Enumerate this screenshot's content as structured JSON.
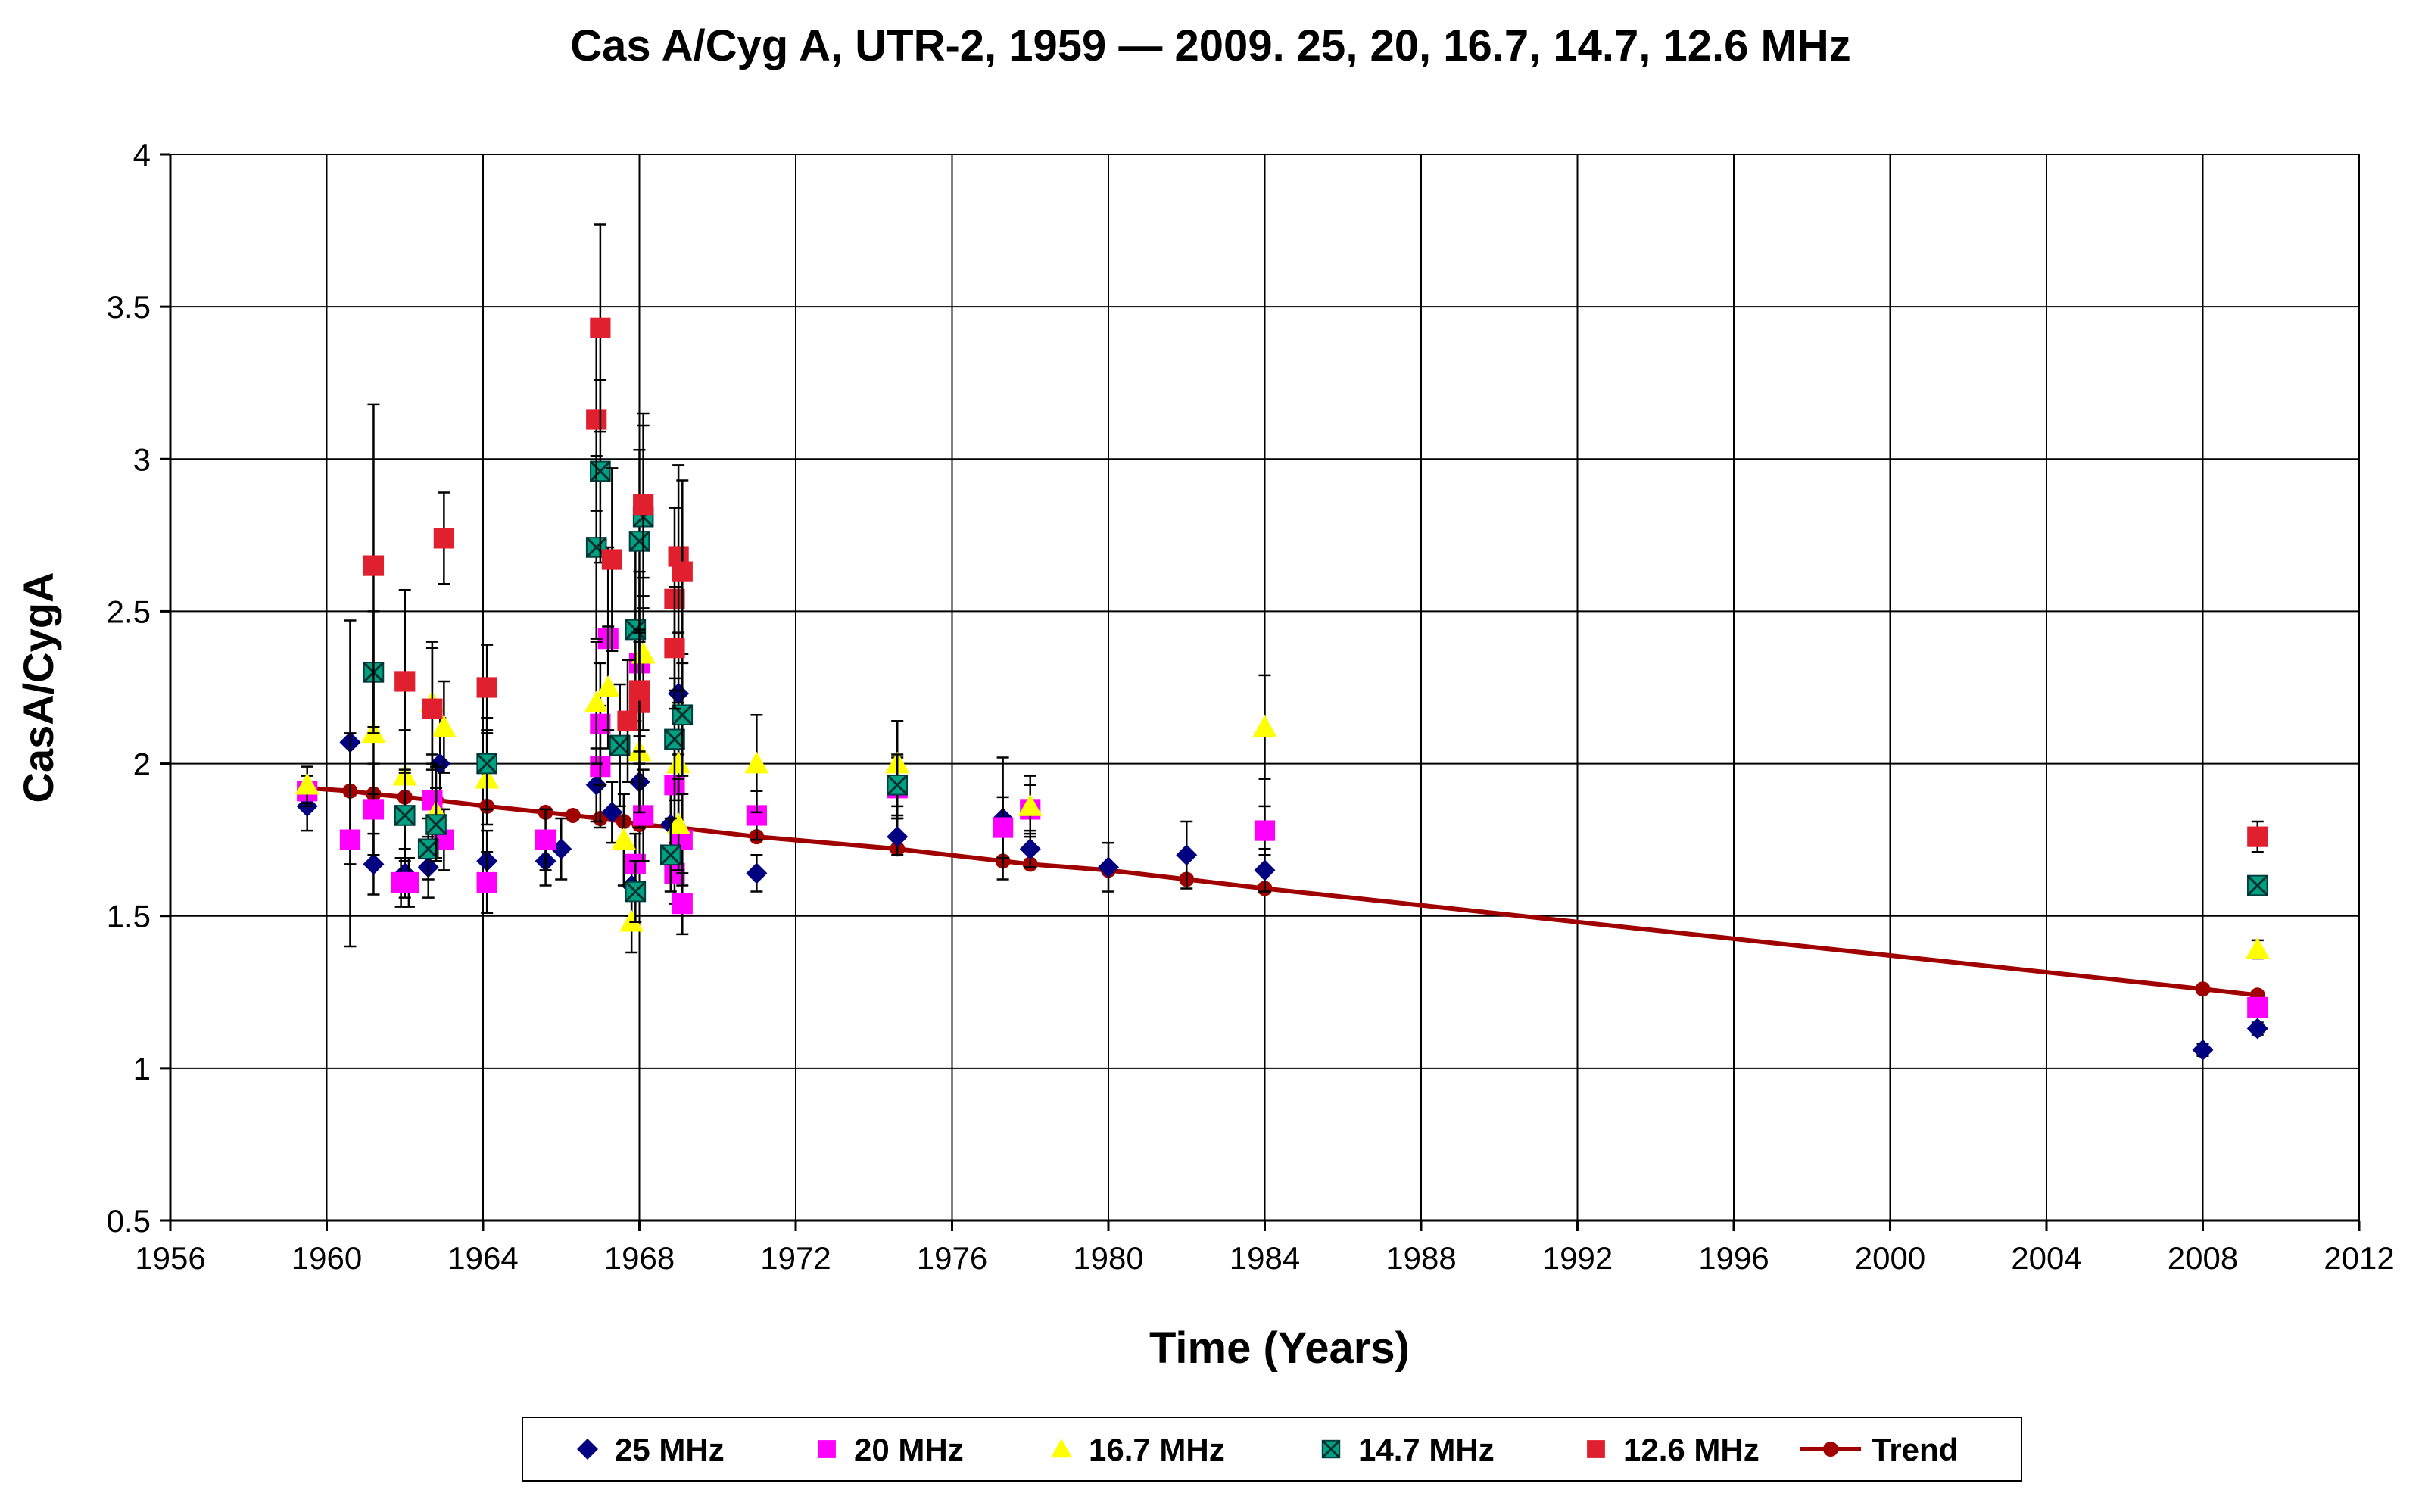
{
  "chart_data": {
    "type": "scatter",
    "title": "Cas A/Cyg A, UTR-2, 1959 — 2009. 25, 20, 16.7, 14.7, 12.6 MHz",
    "xlabel": "Time (Years)",
    "ylabel": "CasA/CygA",
    "xlim": [
      1956,
      2012
    ],
    "ylim": [
      0.5,
      4
    ],
    "x_ticks": [
      1956,
      1960,
      1964,
      1968,
      1972,
      1976,
      1980,
      1984,
      1988,
      1992,
      1996,
      2000,
      2004,
      2008,
      2012
    ],
    "y_ticks": [
      0.5,
      1,
      1.5,
      2,
      2.5,
      3,
      3.5,
      4
    ],
    "y_tick_labels": [
      "0.5",
      "1",
      "1.5",
      "2",
      "2.5",
      "3",
      "3.5",
      "4"
    ],
    "grid": true,
    "legend_position": "bottom",
    "series": [
      {
        "name": "25 MHz",
        "marker": "diamond",
        "color": "#000080",
        "points": [
          {
            "x": 1959.5,
            "y": 1.86,
            "err": 0.08
          },
          {
            "x": 1960.6,
            "y": 2.07,
            "err": 0.4
          },
          {
            "x": 1961.2,
            "y": 1.67,
            "err": 0.1
          },
          {
            "x": 1962.0,
            "y": 1.64,
            "err": 0.08
          },
          {
            "x": 1962.6,
            "y": 1.66,
            "err": 0.1
          },
          {
            "x": 1962.9,
            "y": 2.0,
            "err": 0.15
          },
          {
            "x": 1964.1,
            "y": 1.68,
            "err": 0.1
          },
          {
            "x": 1965.6,
            "y": 1.68,
            "err": 0.08
          },
          {
            "x": 1966.0,
            "y": 1.72,
            "err": 0.1
          },
          {
            "x": 1966.9,
            "y": 1.93,
            "err": 0.12
          },
          {
            "x": 1967.3,
            "y": 1.84,
            "err": 0.1
          },
          {
            "x": 1967.8,
            "y": 1.6,
            "err": 0.1
          },
          {
            "x": 1968.0,
            "y": 1.94,
            "err": 0.15
          },
          {
            "x": 1968.8,
            "y": 1.8,
            "err": 0.15
          },
          {
            "x": 1969.0,
            "y": 2.23,
            "err": 0.2
          },
          {
            "x": 1971.0,
            "y": 1.64,
            "err": 0.06
          },
          {
            "x": 1974.6,
            "y": 1.76,
            "err": 0.06
          },
          {
            "x": 1977.3,
            "y": 1.82,
            "err": 0.2
          },
          {
            "x": 1978.0,
            "y": 1.72,
            "err": 0.06
          },
          {
            "x": 1980.0,
            "y": 1.66,
            "err": 0.08
          },
          {
            "x": 1982.0,
            "y": 1.7,
            "err": 0.11
          },
          {
            "x": 1984.0,
            "y": 1.65,
            "err": 0.07
          },
          {
            "x": 2008.0,
            "y": 1.06,
            "err": 0.02
          },
          {
            "x": 2009.4,
            "y": 1.13,
            "err": 0.02
          }
        ]
      },
      {
        "name": "20 MHz",
        "marker": "square",
        "color": "#FF00FF",
        "points": [
          {
            "x": 1959.5,
            "y": 1.91,
            "err": 0.05
          },
          {
            "x": 1960.6,
            "y": 1.75,
            "err": 0.35
          },
          {
            "x": 1961.2,
            "y": 1.85,
            "err": 0.15
          },
          {
            "x": 1961.9,
            "y": 1.61,
            "err": 0.08
          },
          {
            "x": 1962.1,
            "y": 1.61,
            "err": 0.08
          },
          {
            "x": 1962.7,
            "y": 1.88,
            "err": 0.15
          },
          {
            "x": 1963.0,
            "y": 1.75,
            "err": 0.1
          },
          {
            "x": 1964.1,
            "y": 1.61,
            "err": 0.1
          },
          {
            "x": 1965.6,
            "y": 1.75,
            "err": 0.1
          },
          {
            "x": 1967.0,
            "y": 1.99,
            "err": 0.2
          },
          {
            "x": 1967.0,
            "y": 2.13,
            "err": 0.2
          },
          {
            "x": 1967.2,
            "y": 2.41,
            "err": 0.3
          },
          {
            "x": 1967.9,
            "y": 1.67,
            "err": 0.1
          },
          {
            "x": 1968.0,
            "y": 2.33,
            "err": 0.3
          },
          {
            "x": 1968.1,
            "y": 1.83,
            "err": 0.15
          },
          {
            "x": 1968.9,
            "y": 1.93,
            "err": 0.15
          },
          {
            "x": 1968.9,
            "y": 1.64,
            "err": 0.1
          },
          {
            "x": 1969.1,
            "y": 1.75,
            "err": 0.15
          },
          {
            "x": 1969.1,
            "y": 1.54,
            "err": 0.1
          },
          {
            "x": 1971.0,
            "y": 1.83,
            "err": 0.08
          },
          {
            "x": 1974.6,
            "y": 1.92,
            "err": 0.1
          },
          {
            "x": 1977.3,
            "y": 1.79,
            "err": 0.1
          },
          {
            "x": 1978.0,
            "y": 1.85,
            "err": 0.08
          },
          {
            "x": 1984.0,
            "y": 1.78,
            "err": 0.08
          },
          {
            "x": 2009.4,
            "y": 1.2,
            "err": 0.03
          }
        ]
      },
      {
        "name": "16.7 MHz",
        "marker": "triangle",
        "color": "#FFFF00",
        "points": [
          {
            "x": 1959.5,
            "y": 1.93,
            "err": 0.06
          },
          {
            "x": 1961.2,
            "y": 2.1,
            "err": 0.2
          },
          {
            "x": 1962.0,
            "y": 1.96,
            "err": 0.15
          },
          {
            "x": 1962.7,
            "y": 2.2,
            "err": 0.2
          },
          {
            "x": 1963.0,
            "y": 2.12,
            "err": 0.15
          },
          {
            "x": 1962.8,
            "y": 1.84,
            "err": 0.15
          },
          {
            "x": 1964.1,
            "y": 1.95,
            "err": 0.15
          },
          {
            "x": 1966.9,
            "y": 2.2,
            "err": 0.2
          },
          {
            "x": 1967.2,
            "y": 2.25,
            "err": 0.2
          },
          {
            "x": 1967.6,
            "y": 1.75,
            "err": 0.15
          },
          {
            "x": 1967.8,
            "y": 1.48,
            "err": 0.1
          },
          {
            "x": 1968.0,
            "y": 2.04,
            "err": 0.2
          },
          {
            "x": 1968.1,
            "y": 2.36,
            "err": 0.25
          },
          {
            "x": 1969.0,
            "y": 2.0,
            "err": 0.2
          },
          {
            "x": 1969.0,
            "y": 1.8,
            "err": 0.15
          },
          {
            "x": 1971.0,
            "y": 2.0,
            "err": 0.16
          },
          {
            "x": 1974.6,
            "y": 2.0,
            "err": 0.14
          },
          {
            "x": 1978.0,
            "y": 1.86,
            "err": 0.1
          },
          {
            "x": 1984.0,
            "y": 2.12,
            "err": 0.17
          },
          {
            "x": 2009.4,
            "y": 1.39,
            "err": 0.03
          }
        ]
      },
      {
        "name": "14.7 MHz",
        "marker": "square-x",
        "color": "#008080",
        "points": [
          {
            "x": 1961.2,
            "y": 2.3,
            "err": 0.2
          },
          {
            "x": 1962.0,
            "y": 1.83,
            "err": 0.15
          },
          {
            "x": 1962.6,
            "y": 1.72,
            "err": 0.1
          },
          {
            "x": 1962.8,
            "y": 1.8,
            "err": 0.12
          },
          {
            "x": 1964.1,
            "y": 2.0,
            "err": 0.15
          },
          {
            "x": 1966.9,
            "y": 2.71,
            "err": 0.3
          },
          {
            "x": 1967.0,
            "y": 2.96,
            "err": 0.3
          },
          {
            "x": 1967.5,
            "y": 2.06,
            "err": 0.2
          },
          {
            "x": 1967.9,
            "y": 2.44,
            "err": 0.3
          },
          {
            "x": 1968.0,
            "y": 2.73,
            "err": 0.3
          },
          {
            "x": 1968.1,
            "y": 2.81,
            "err": 0.3
          },
          {
            "x": 1967.9,
            "y": 1.58,
            "err": 0.1
          },
          {
            "x": 1968.9,
            "y": 2.08,
            "err": 0.2
          },
          {
            "x": 1969.1,
            "y": 2.16,
            "err": 0.2
          },
          {
            "x": 1968.8,
            "y": 1.7,
            "err": 0.12
          },
          {
            "x": 1974.6,
            "y": 1.93,
            "err": 0.1
          },
          {
            "x": 2009.4,
            "y": 1.6,
            "err": 0.03
          }
        ]
      },
      {
        "name": "12.6 MHz",
        "marker": "square",
        "color": "#E0202E",
        "points": [
          {
            "x": 1961.2,
            "y": 2.65,
            "err": 0.53
          },
          {
            "x": 1962.0,
            "y": 2.27,
            "err": 0.3
          },
          {
            "x": 1962.7,
            "y": 2.18,
            "err": 0.2
          },
          {
            "x": 1963.0,
            "y": 2.74,
            "err": 0.15
          },
          {
            "x": 1964.1,
            "y": 2.25,
            "err": 0.14
          },
          {
            "x": 1966.9,
            "y": 3.13,
            "err": 0.3
          },
          {
            "x": 1967.0,
            "y": 3.43,
            "err": 0.34
          },
          {
            "x": 1967.3,
            "y": 2.67,
            "err": 0.3
          },
          {
            "x": 1967.7,
            "y": 2.14,
            "err": 0.2
          },
          {
            "x": 1968.0,
            "y": 2.2,
            "err": 0.2
          },
          {
            "x": 1968.1,
            "y": 2.85,
            "err": 0.3
          },
          {
            "x": 1968.0,
            "y": 2.24,
            "err": 0.2
          },
          {
            "x": 1968.9,
            "y": 2.54,
            "err": 0.3
          },
          {
            "x": 1969.0,
            "y": 2.68,
            "err": 0.3
          },
          {
            "x": 1969.1,
            "y": 2.63,
            "err": 0.3
          },
          {
            "x": 1968.9,
            "y": 2.38,
            "err": 0.2
          },
          {
            "x": 2009.4,
            "y": 1.76,
            "err": 0.05
          }
        ]
      }
    ],
    "trend": {
      "name": "Trend",
      "color": "#A00000",
      "x": [
        1959.5,
        1960.6,
        1961.2,
        1962.0,
        1962.8,
        1964.1,
        1965.6,
        1966.3,
        1967.0,
        1967.6,
        1968.0,
        1969.0,
        1971.0,
        1974.6,
        1977.3,
        1978.0,
        1980.0,
        1982.0,
        1984.0,
        2008.0,
        2009.4
      ],
      "y": [
        1.92,
        1.91,
        1.9,
        1.89,
        1.88,
        1.86,
        1.84,
        1.83,
        1.82,
        1.81,
        1.8,
        1.79,
        1.76,
        1.72,
        1.68,
        1.67,
        1.65,
        1.62,
        1.59,
        1.26,
        1.24
      ]
    }
  }
}
